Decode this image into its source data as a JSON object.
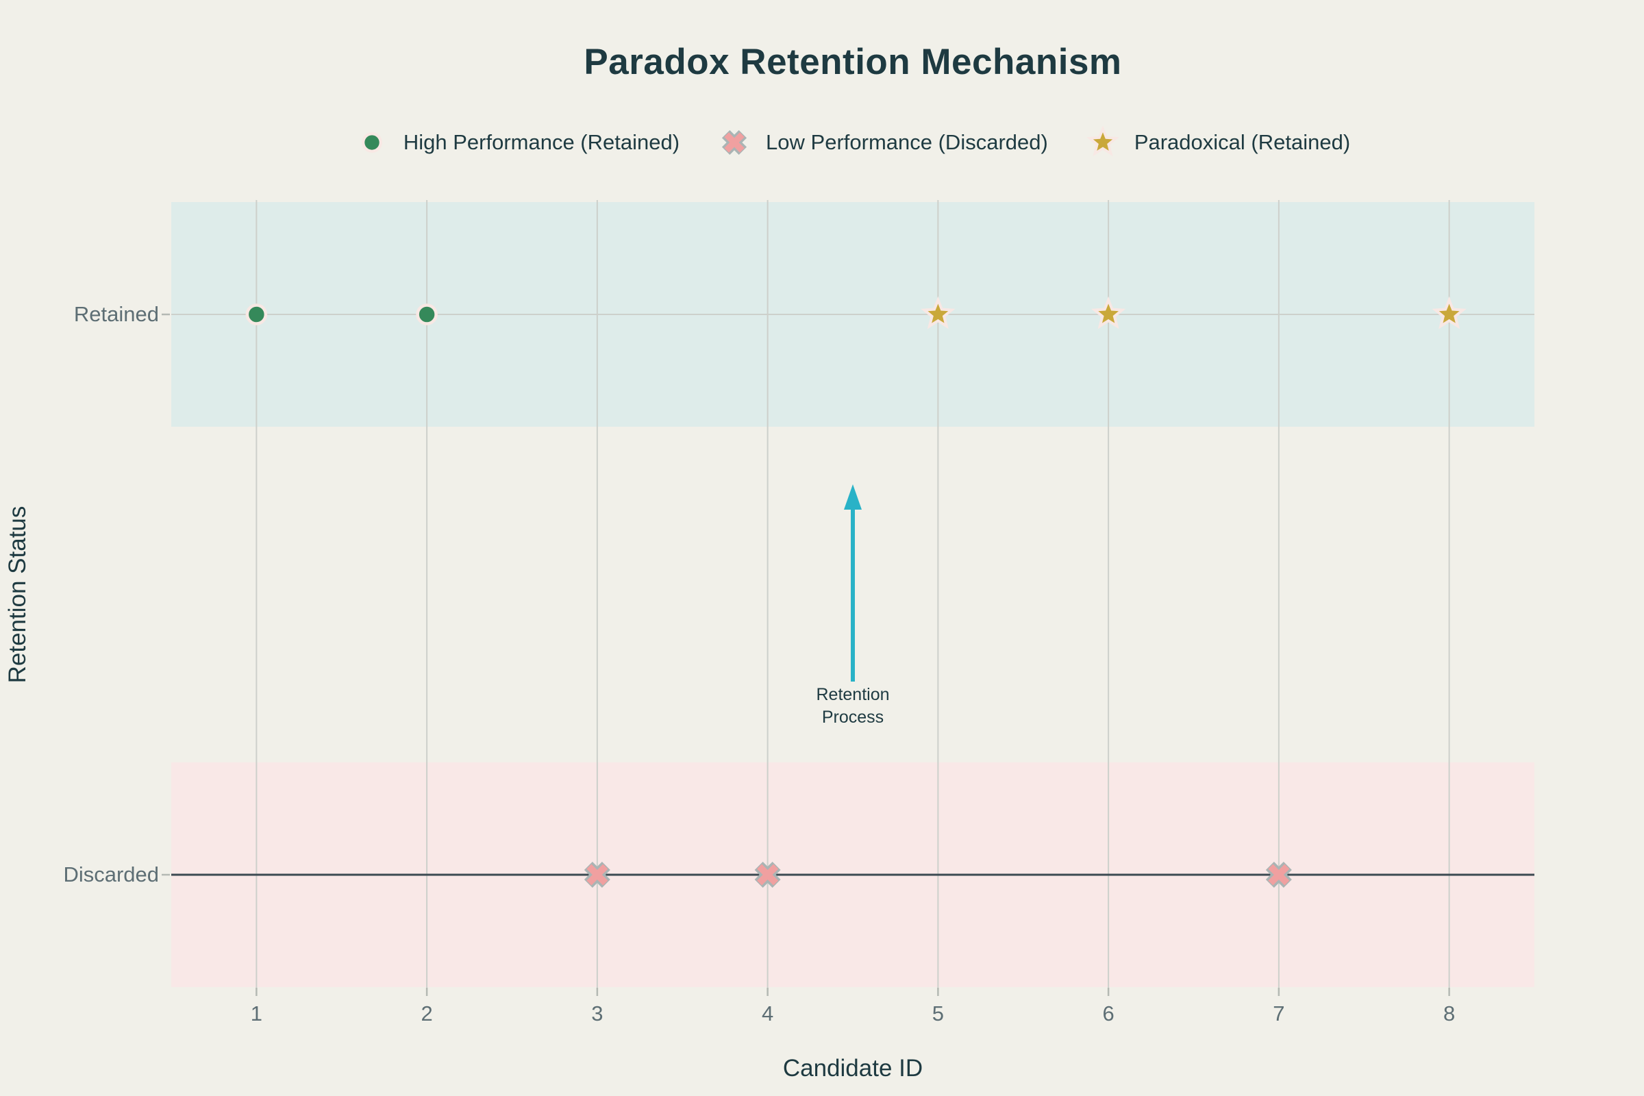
{
  "title": "Paradox Retention Mechanism",
  "axes": {
    "x_label": "Candidate ID",
    "y_label": "Retention Status",
    "x_ticks": [
      "1",
      "2",
      "3",
      "4",
      "5",
      "6",
      "7",
      "8"
    ],
    "y_ticks": [
      "Retained",
      "Discarded"
    ]
  },
  "legend": {
    "items": [
      {
        "label": "High Performance (Retained)",
        "marker": "circle",
        "fill": "#35895a",
        "edge": "#f8e8e4"
      },
      {
        "label": "Low Performance (Discarded)",
        "marker": "x",
        "fill": "#f0a0a0",
        "edge": "#aab4b4"
      },
      {
        "label": "Paradoxical (Retained)",
        "marker": "star",
        "fill": "#c9a83a",
        "edge": "#f8e8e4"
      }
    ]
  },
  "annotation": {
    "lines": [
      "Retention",
      "Process"
    ],
    "arrow_color": "#29b2c7"
  },
  "colors": {
    "background": "#f1f0e9",
    "heading_text": "#1e3a41",
    "tick_text": "#5d6e74",
    "band_retained": "#deecea",
    "band_discarded": "#f9e8e7",
    "gridline": "#cdd0cb",
    "tick_mark": "#b4b9b3",
    "discarded_axis_line": "#3c4a52"
  },
  "chart_data": {
    "type": "scatter",
    "title": "Paradox Retention Mechanism",
    "xlabel": "Candidate ID",
    "ylabel": "Retention Status",
    "x_ticks": [
      1,
      2,
      3,
      4,
      5,
      6,
      7,
      8
    ],
    "xlim": [
      0.5,
      8.5
    ],
    "y_categories": [
      "Discarded",
      "Retained"
    ],
    "grid": true,
    "legend_position": "top-center",
    "bands": [
      {
        "category": "Retained",
        "color": "#deecea"
      },
      {
        "category": "Discarded",
        "color": "#f9e8e7"
      }
    ],
    "baseline": {
      "category": "Discarded",
      "color": "#3c4a52"
    },
    "series": [
      {
        "name": "High Performance (Retained)",
        "marker": "circle",
        "fill": "#35895a",
        "edge": "#f8e8e4",
        "points": [
          {
            "x": 1,
            "y": "Retained"
          },
          {
            "x": 2,
            "y": "Retained"
          }
        ]
      },
      {
        "name": "Low Performance (Discarded)",
        "marker": "x",
        "fill": "#f0a0a0",
        "edge": "#aab4b4",
        "points": [
          {
            "x": 3,
            "y": "Discarded"
          },
          {
            "x": 4,
            "y": "Discarded"
          },
          {
            "x": 7,
            "y": "Discarded"
          }
        ]
      },
      {
        "name": "Paradoxical (Retained)",
        "marker": "star",
        "fill": "#c9a83a",
        "edge": "#f8e8e4",
        "points": [
          {
            "x": 5,
            "y": "Retained"
          },
          {
            "x": 6,
            "y": "Retained"
          },
          {
            "x": 8,
            "y": "Retained"
          }
        ]
      }
    ],
    "annotation": {
      "text": "Retention Process",
      "x": 4.5,
      "points_to": "Retained",
      "direction": "up"
    }
  }
}
